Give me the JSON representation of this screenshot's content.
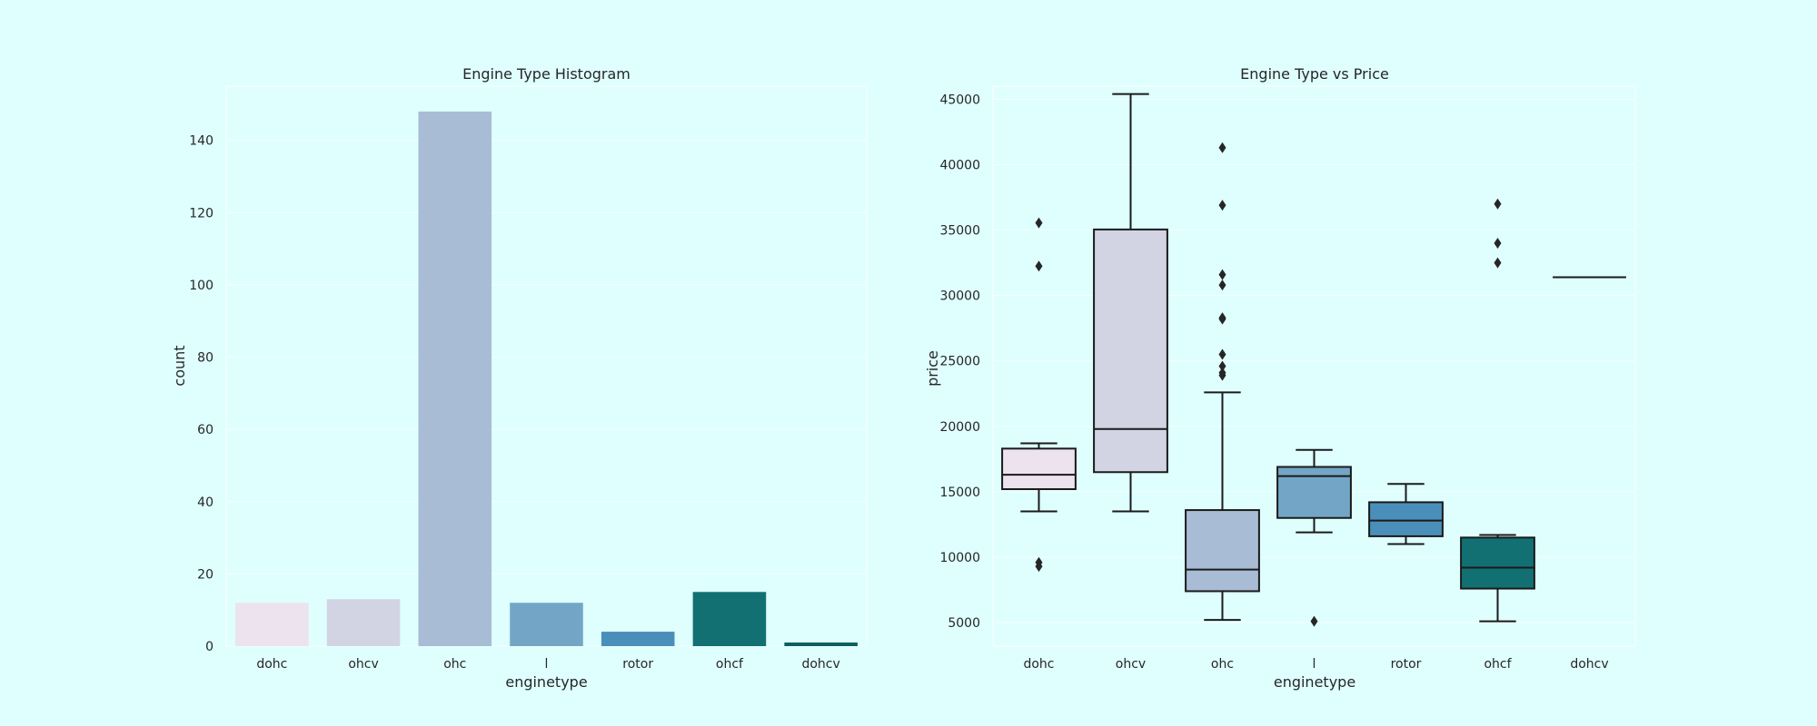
{
  "chart_data": [
    {
      "type": "bar",
      "title": "Engine Type Histogram",
      "xlabel": "enginetype",
      "ylabel": "count",
      "categories": [
        "dohc",
        "ohcv",
        "ohc",
        "l",
        "rotor",
        "ohcf",
        "dohcv"
      ],
      "values": [
        12,
        13,
        148,
        12,
        4,
        15,
        1
      ],
      "ylim": [
        0,
        155
      ],
      "yticks": [
        0,
        20,
        40,
        60,
        80,
        100,
        120,
        140
      ],
      "colors": [
        "#ece3ee",
        "#d2d4e3",
        "#a9bcd5",
        "#73a6c6",
        "#4a8fba",
        "#127073",
        "#0d5e60"
      ],
      "grid": true
    },
    {
      "type": "box",
      "title": "Engine Type vs Price",
      "xlabel": "enginetype",
      "ylabel": "price",
      "categories": [
        "dohc",
        "ohcv",
        "ohc",
        "l",
        "rotor",
        "ohcf",
        "dohcv"
      ],
      "ylim": [
        3200,
        46000
      ],
      "yticks": [
        5000,
        10000,
        15000,
        20000,
        25000,
        30000,
        35000,
        40000,
        45000
      ],
      "colors": [
        "#ece3ee",
        "#d2d4e3",
        "#a9bcd5",
        "#73a6c6",
        "#4a8fba",
        "#127073",
        "#0d5e60"
      ],
      "boxes": [
        {
          "min": 13500,
          "q1": 15200,
          "median": 16300,
          "q3": 18300,
          "max": 18700,
          "outliers": [
            35550,
            32250,
            9600,
            9300
          ]
        },
        {
          "min": 13500,
          "q1": 16500,
          "median": 19800,
          "q3": 35050,
          "max": 45400,
          "outliers": []
        },
        {
          "min": 5200,
          "q1": 7400,
          "median": 9050,
          "q3": 13600,
          "max": 22600,
          "outliers": [
            41300,
            36900,
            31600,
            30800,
            28300,
            28200,
            25500,
            24600,
            24100,
            23900
          ]
        },
        {
          "min": 11900,
          "q1": 13000,
          "median": 16200,
          "q3": 16900,
          "max": 18200,
          "outliers": [
            5100
          ]
        },
        {
          "min": 11000,
          "q1": 11600,
          "median": 12800,
          "q3": 14200,
          "max": 15600,
          "outliers": []
        },
        {
          "min": 5100,
          "q1": 7600,
          "median": 9200,
          "q3": 11500,
          "max": 11700,
          "outliers": [
            37000,
            34000,
            32500
          ]
        },
        {
          "min": 31400,
          "q1": 31400,
          "median": 31400,
          "q3": 31400,
          "max": 31400,
          "outliers": []
        }
      ],
      "grid": true
    }
  ]
}
